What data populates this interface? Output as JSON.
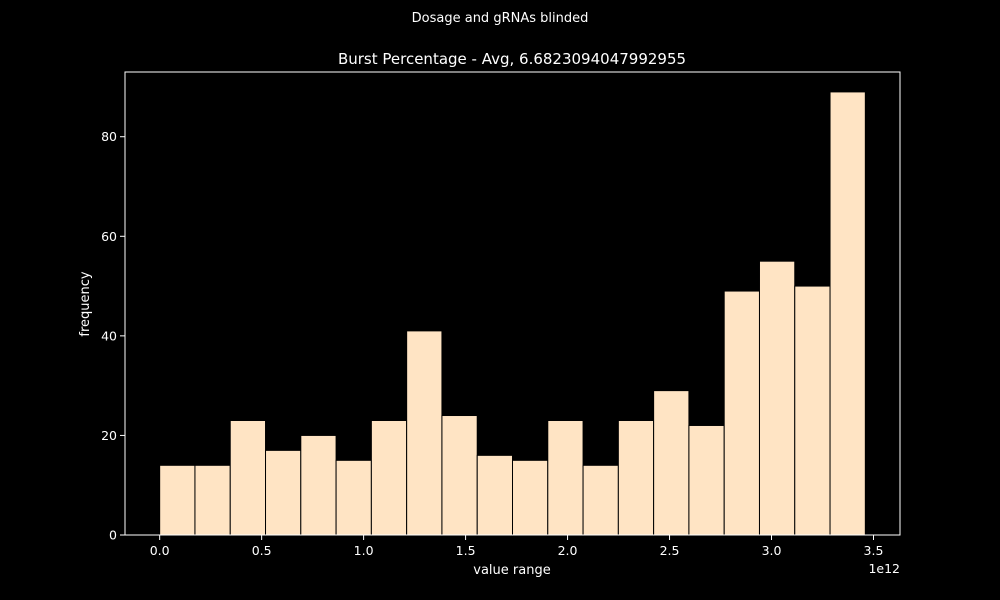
{
  "suptitle": "Dosage and gRNAs blinded",
  "chart_data": {
    "type": "bar",
    "title": "Burst Percentage - Avg, 6.6823094047992955",
    "xlabel": "value range",
    "ylabel": "frequency",
    "x_offset_label": "1e12",
    "x_tick_labels": [
      "0.0",
      "0.5",
      "1.0",
      "1.5",
      "2.0",
      "2.5",
      "3.0",
      "3.5"
    ],
    "x_ticks": [
      0.0,
      0.5,
      1.0,
      1.5,
      2.0,
      2.5,
      3.0,
      3.5
    ],
    "y_ticks": [
      0,
      20,
      40,
      60,
      80
    ],
    "xlim": [
      -0.17,
      3.63
    ],
    "ylim": [
      0,
      93
    ],
    "bin_edges": [
      0.0,
      0.173,
      0.346,
      0.519,
      0.692,
      0.865,
      1.038,
      1.211,
      1.384,
      1.557,
      1.73,
      1.903,
      2.076,
      2.249,
      2.422,
      2.595,
      2.768,
      2.941,
      3.114,
      3.287,
      3.46
    ],
    "values": [
      14,
      14,
      23,
      17,
      20,
      15,
      23,
      41,
      24,
      16,
      15,
      23,
      14,
      23,
      29,
      22,
      49,
      55,
      50,
      89
    ],
    "bar_color": "#ffe4c4",
    "edge_color": "#000000",
    "background": "#000000",
    "axis_color": "#ffffff",
    "grid": false,
    "legend": "none"
  }
}
